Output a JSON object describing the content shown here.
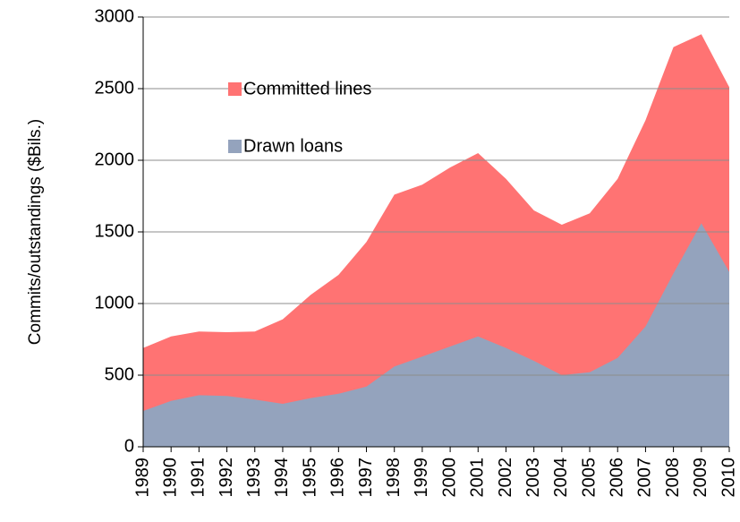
{
  "chart_data": {
    "type": "area",
    "y_label": "Commits/outstandings ($Bils.)",
    "categories": [
      "1989",
      "1990",
      "1991",
      "1992",
      "1993",
      "1994",
      "1995",
      "1996",
      "1997",
      "1998",
      "1999",
      "2000",
      "2001",
      "2002",
      "2003",
      "2004",
      "2005",
      "2006",
      "2007",
      "2008",
      "2009",
      "2010"
    ],
    "series": [
      {
        "name": "Committed lines",
        "color": "#ff7373",
        "values": [
          690,
          770,
          805,
          800,
          805,
          890,
          1060,
          1200,
          1430,
          1760,
          1830,
          1950,
          2050,
          1870,
          1650,
          1550,
          1630,
          1870,
          2280,
          2790,
          2880,
          2510
        ]
      },
      {
        "name": "Drawn loans",
        "color": "#94a3bd",
        "values": [
          250,
          320,
          360,
          355,
          330,
          300,
          340,
          370,
          420,
          560,
          630,
          700,
          770,
          690,
          600,
          500,
          520,
          620,
          840,
          1210,
          1560,
          1220
        ]
      }
    ],
    "ylim": [
      0,
      3000
    ],
    "yticks": [
      0,
      500,
      1000,
      1500,
      2000,
      2500,
      3000
    ],
    "grid": true
  }
}
